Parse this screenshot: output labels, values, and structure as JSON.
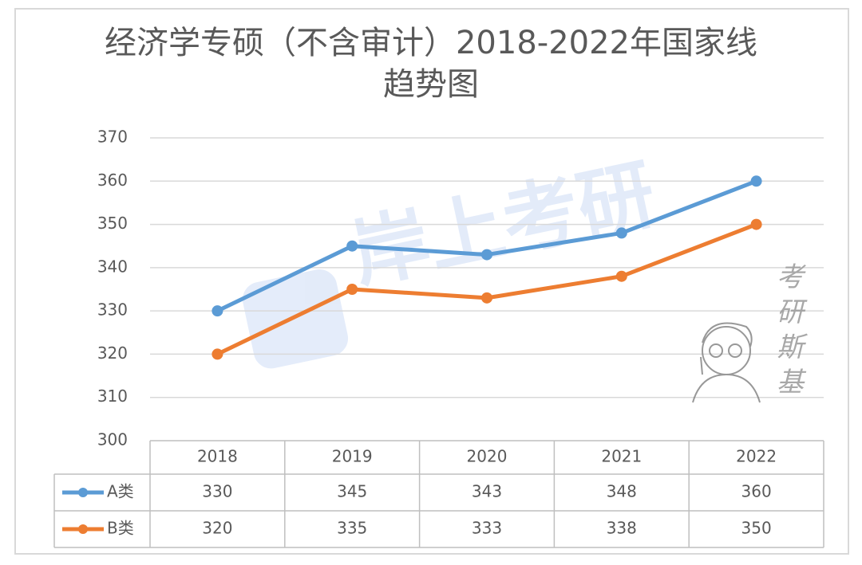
{
  "chart_data": {
    "type": "line",
    "title": "经济学专硕（不含审计）2018-2022年国家线",
    "subtitle": "趋势图",
    "categories": [
      "2018",
      "2019",
      "2020",
      "2021",
      "2022"
    ],
    "ylim": [
      300,
      370
    ],
    "yticks": [
      "300",
      "310",
      "320",
      "330",
      "340",
      "350",
      "360",
      "370"
    ],
    "grid": true,
    "legend": "data-table",
    "series": [
      {
        "name": "A类",
        "values": [
          330,
          345,
          343,
          348,
          360
        ],
        "color": "#5b9bd5"
      },
      {
        "name": "B类",
        "values": [
          320,
          335,
          333,
          338,
          350
        ],
        "color": "#ed7d31"
      }
    ]
  },
  "watermark": {
    "center_text": "岸上考研",
    "side_chars": [
      "考",
      "研",
      "斯",
      "基"
    ]
  }
}
